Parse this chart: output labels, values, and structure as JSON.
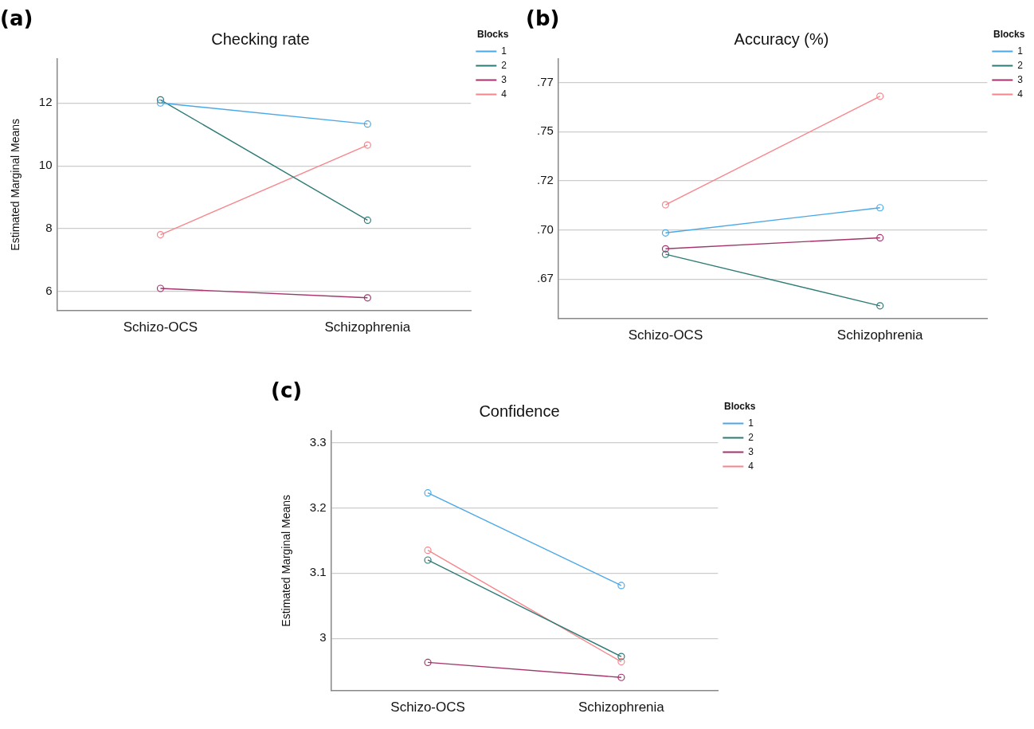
{
  "chart_data": [
    {
      "type": "line",
      "title": "Checking rate",
      "ylabel": "Estimated Marginal Means",
      "legend_title": "Blocks",
      "legend": "top right",
      "grid": "y",
      "marker": "circle",
      "line_style": "solid",
      "annotations": [
        "(a)"
      ],
      "categories": [
        "Schizo-OCS",
        "Schizophrenia"
      ],
      "ylim": [
        5.4,
        13.4
      ],
      "yticks": [
        6,
        8,
        10,
        12
      ],
      "series": [
        {
          "name": "1",
          "color": "#4aa8e8",
          "values": [
            12.0,
            11.33
          ]
        },
        {
          "name": "2",
          "color": "#2e7b76",
          "values": [
            12.1,
            8.27
          ]
        },
        {
          "name": "3",
          "color": "#a3346c",
          "values": [
            6.1,
            5.8
          ]
        },
        {
          "name": "4",
          "color": "#f7868c",
          "values": [
            7.81,
            10.66
          ]
        }
      ]
    },
    {
      "type": "line",
      "title": "Accuracy (%)",
      "legend_title": "Blocks",
      "legend": "top right",
      "grid": "y",
      "marker": "circle",
      "line_style": "solid",
      "annotations": [
        "(b)"
      ],
      "categories": [
        "Schizo-OCS",
        "Schizophrenia"
      ],
      "ylim": [
        0.65,
        0.782
      ],
      "yticks": [
        {
          "value": 0.67,
          "label": ".67"
        },
        {
          "value": 0.695,
          "label": ".70"
        },
        {
          "value": 0.72,
          "label": ".72"
        },
        {
          "value": 0.745,
          "label": ".75"
        },
        {
          "value": 0.77,
          "label": ".77"
        }
      ],
      "series": [
        {
          "name": "1",
          "color": "#4aa8e8",
          "values": [
            0.6935,
            0.7063
          ]
        },
        {
          "name": "2",
          "color": "#2e7b76",
          "values": [
            0.6826,
            0.6564
          ]
        },
        {
          "name": "3",
          "color": "#a3346c",
          "values": [
            0.6854,
            0.691
          ]
        },
        {
          "name": "4",
          "color": "#f7868c",
          "values": [
            0.7078,
            0.763
          ]
        }
      ]
    },
    {
      "type": "line",
      "title": "Confidence",
      "ylabel": "Estimated Marginal Means",
      "legend_title": "Blocks",
      "legend": "top right",
      "grid": "y",
      "marker": "circle",
      "line_style": "solid",
      "annotations": [
        "(c)"
      ],
      "categories": [
        "Schizo-OCS",
        "Schizophrenia"
      ],
      "ylim": [
        2.92,
        3.318
      ],
      "yticks": [
        3,
        3.1,
        3.2,
        3.3
      ],
      "series": [
        {
          "name": "1",
          "color": "#4aa8e8",
          "values": [
            3.223,
            3.081
          ]
        },
        {
          "name": "2",
          "color": "#2e7b76",
          "values": [
            3.12,
            2.972
          ]
        },
        {
          "name": "3",
          "color": "#a3346c",
          "values": [
            2.963,
            2.94
          ]
        },
        {
          "name": "4",
          "color": "#f7868c",
          "values": [
            3.135,
            2.964
          ]
        }
      ]
    }
  ]
}
